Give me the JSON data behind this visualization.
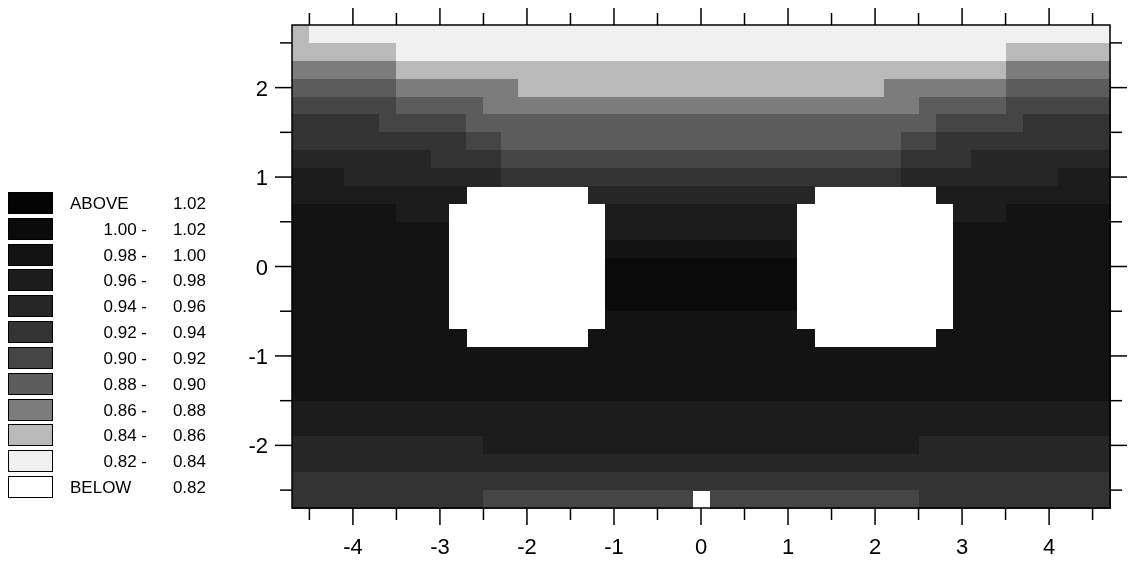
{
  "chart_data": {
    "type": "heatmap",
    "xlim": [
      -4.7,
      4.7
    ],
    "ylim": [
      -2.7,
      2.7
    ],
    "xticks": [
      {
        "value": -4.5,
        "label": null
      },
      -4,
      {
        "value": -3.5,
        "label": null
      },
      -3,
      {
        "value": -2.5,
        "label": null
      },
      -2,
      {
        "value": -1.5,
        "label": null
      },
      -1,
      {
        "value": -0.5,
        "label": null
      },
      0,
      {
        "value": 0.5,
        "label": null
      },
      1,
      {
        "value": 1.5,
        "label": null
      },
      2,
      {
        "value": 2.5,
        "label": null
      },
      3,
      {
        "value": 3.5,
        "label": null
      },
      4,
      {
        "value": 4.5,
        "label": null
      }
    ],
    "yticks": [
      {
        "value": -2.5,
        "label": null
      },
      -2,
      {
        "value": -1.5,
        "label": null
      },
      -1,
      {
        "value": -0.5,
        "label": null
      },
      0,
      {
        "value": 0.5,
        "label": null
      },
      1,
      {
        "value": 1.5,
        "label": null
      },
      2,
      {
        "value": 2.5,
        "label": null
      }
    ],
    "cticks": [
      {
        "value": 0.82,
        "label": "0.82 -"
      },
      {
        "value": 0.84,
        "label": "0.84 -"
      },
      {
        "value": 0.86,
        "label": "0.86 -"
      },
      {
        "value": 0.88,
        "label": "0.88 -"
      },
      {
        "value": 0.9,
        "label": "0.90 -"
      },
      {
        "value": 0.92,
        "label": "0.92 -"
      },
      {
        "value": 0.94,
        "label": "0.94 -"
      },
      {
        "value": 0.96,
        "label": "0.96 -"
      },
      {
        "value": 0.98,
        "label": "0.98 -"
      },
      {
        "value": 1.0,
        "label": "1.00 -"
      }
    ],
    "colors": [
      "#ffffff",
      "#f0f0f0",
      "#b9b9b9",
      "#7c7c7c",
      "#5c5c5c",
      "#454545",
      "#333333",
      "#262626",
      "#1c1c1c",
      "#131313",
      "#0b0b0b",
      "#040404"
    ],
    "annotations": [
      "ABOVE",
      "BELOW",
      "1.02",
      "1.02",
      "1.00",
      "0.98",
      "0.96",
      "0.94",
      "0.92",
      "0.90",
      "0.88",
      "0.86",
      "0.84",
      "0.82"
    ],
    "cells": [
      [
        0.84,
        0.82,
        0.82,
        0.82,
        0.82,
        0.82,
        0.82,
        0.82,
        0.82,
        0.82,
        0.82,
        0.82,
        0.82,
        0.82,
        0.82,
        0.82,
        0.82,
        0.82,
        0.82,
        0.82,
        0.82,
        0.82,
        0.82,
        0.82,
        0.82,
        0.82,
        0.82,
        0.82,
        0.82,
        0.82,
        0.82,
        0.82,
        0.82,
        0.82,
        0.82,
        0.82,
        0.82,
        0.82,
        0.82,
        0.82,
        0.82,
        0.82,
        0.82,
        0.82,
        0.82,
        0.82,
        0.82
      ],
      [
        0.84,
        0.84,
        0.84,
        0.84,
        0.84,
        0.84,
        0.82,
        0.82,
        0.82,
        0.82,
        0.82,
        0.82,
        0.82,
        0.82,
        0.82,
        0.82,
        0.82,
        0.82,
        0.82,
        0.82,
        0.82,
        0.82,
        0.82,
        0.82,
        0.82,
        0.82,
        0.82,
        0.82,
        0.82,
        0.82,
        0.82,
        0.82,
        0.82,
        0.82,
        0.82,
        0.82,
        0.82,
        0.82,
        0.82,
        0.82,
        0.82,
        0.84,
        0.84,
        0.84,
        0.84,
        0.84,
        0.84
      ],
      [
        0.86,
        0.86,
        0.86,
        0.86,
        0.86,
        0.86,
        0.84,
        0.84,
        0.84,
        0.84,
        0.84,
        0.84,
        0.84,
        0.84,
        0.84,
        0.84,
        0.84,
        0.84,
        0.84,
        0.84,
        0.84,
        0.84,
        0.84,
        0.84,
        0.84,
        0.84,
        0.84,
        0.84,
        0.84,
        0.84,
        0.84,
        0.84,
        0.84,
        0.84,
        0.84,
        0.84,
        0.84,
        0.84,
        0.84,
        0.84,
        0.84,
        0.86,
        0.86,
        0.86,
        0.86,
        0.86,
        0.86
      ],
      [
        0.88,
        0.88,
        0.88,
        0.88,
        0.88,
        0.88,
        0.86,
        0.86,
        0.86,
        0.86,
        0.86,
        0.86,
        0.86,
        0.84,
        0.84,
        0.84,
        0.84,
        0.84,
        0.84,
        0.84,
        0.84,
        0.84,
        0.84,
        0.84,
        0.84,
        0.84,
        0.84,
        0.84,
        0.84,
        0.84,
        0.84,
        0.84,
        0.84,
        0.84,
        0.86,
        0.86,
        0.86,
        0.86,
        0.86,
        0.86,
        0.86,
        0.88,
        0.88,
        0.88,
        0.88,
        0.88,
        0.88
      ],
      [
        0.9,
        0.9,
        0.9,
        0.9,
        0.9,
        0.9,
        0.88,
        0.88,
        0.88,
        0.88,
        0.88,
        0.86,
        0.86,
        0.86,
        0.86,
        0.86,
        0.86,
        0.86,
        0.86,
        0.86,
        0.86,
        0.86,
        0.86,
        0.86,
        0.86,
        0.86,
        0.86,
        0.86,
        0.86,
        0.86,
        0.86,
        0.86,
        0.86,
        0.86,
        0.86,
        0.86,
        0.88,
        0.88,
        0.88,
        0.88,
        0.88,
        0.9,
        0.9,
        0.9,
        0.9,
        0.9,
        0.9
      ],
      [
        0.92,
        0.92,
        0.92,
        0.92,
        0.92,
        0.9,
        0.9,
        0.9,
        0.9,
        0.9,
        0.88,
        0.88,
        0.88,
        0.88,
        0.88,
        0.88,
        0.88,
        0.88,
        0.88,
        0.88,
        0.88,
        0.88,
        0.88,
        0.88,
        0.88,
        0.88,
        0.88,
        0.88,
        0.88,
        0.88,
        0.88,
        0.88,
        0.88,
        0.88,
        0.88,
        0.88,
        0.88,
        0.9,
        0.9,
        0.9,
        0.9,
        0.9,
        0.92,
        0.92,
        0.92,
        0.92,
        0.92
      ],
      [
        0.92,
        0.92,
        0.92,
        0.92,
        0.92,
        0.92,
        0.92,
        0.92,
        0.92,
        0.92,
        0.9,
        0.9,
        0.88,
        0.88,
        0.88,
        0.88,
        0.88,
        0.88,
        0.88,
        0.88,
        0.88,
        0.88,
        0.88,
        0.88,
        0.88,
        0.88,
        0.88,
        0.88,
        0.88,
        0.88,
        0.88,
        0.88,
        0.88,
        0.88,
        0.88,
        0.9,
        0.9,
        0.92,
        0.92,
        0.92,
        0.92,
        0.92,
        0.92,
        0.92,
        0.92,
        0.92,
        0.92
      ],
      [
        0.94,
        0.94,
        0.94,
        0.94,
        0.94,
        0.94,
        0.94,
        0.94,
        0.92,
        0.92,
        0.92,
        0.92,
        0.9,
        0.9,
        0.9,
        0.9,
        0.9,
        0.9,
        0.9,
        0.9,
        0.9,
        0.9,
        0.9,
        0.9,
        0.9,
        0.9,
        0.9,
        0.9,
        0.9,
        0.9,
        0.9,
        0.9,
        0.9,
        0.9,
        0.9,
        0.92,
        0.92,
        0.92,
        0.92,
        0.94,
        0.94,
        0.94,
        0.94,
        0.94,
        0.94,
        0.94,
        0.94
      ],
      [
        0.96,
        0.96,
        0.96,
        0.94,
        0.94,
        0.94,
        0.94,
        0.94,
        0.94,
        0.94,
        0.94,
        0.94,
        0.92,
        0.92,
        0.92,
        0.92,
        0.92,
        0.92,
        0.92,
        0.92,
        0.92,
        0.92,
        0.92,
        0.92,
        0.92,
        0.92,
        0.92,
        0.92,
        0.92,
        0.92,
        0.92,
        0.92,
        0.92,
        0.92,
        0.92,
        0.94,
        0.94,
        0.94,
        0.94,
        0.94,
        0.94,
        0.94,
        0.94,
        0.94,
        0.96,
        0.96,
        0.96
      ],
      [
        0.96,
        0.96,
        0.96,
        0.96,
        0.96,
        0.96,
        0.96,
        0.96,
        0.96,
        0.96,
        null,
        null,
        null,
        null,
        null,
        null,
        null,
        0.94,
        0.94,
        0.94,
        0.94,
        0.94,
        0.94,
        0.94,
        0.94,
        0.94,
        0.94,
        0.94,
        0.94,
        0.94,
        null,
        null,
        null,
        null,
        null,
        null,
        null,
        0.96,
        0.96,
        0.96,
        0.96,
        0.96,
        0.96,
        0.96,
        0.96,
        0.96,
        0.96
      ],
      [
        0.98,
        0.98,
        0.98,
        0.98,
        0.98,
        0.98,
        0.96,
        0.96,
        0.96,
        null,
        null,
        null,
        null,
        null,
        null,
        null,
        null,
        null,
        0.96,
        0.96,
        0.96,
        0.96,
        0.96,
        0.96,
        0.96,
        0.96,
        0.96,
        0.96,
        0.96,
        null,
        null,
        null,
        null,
        null,
        null,
        null,
        null,
        null,
        0.96,
        0.96,
        0.96,
        0.98,
        0.98,
        0.98,
        0.98,
        0.98,
        0.98
      ],
      [
        0.98,
        0.98,
        0.98,
        0.98,
        0.98,
        0.98,
        0.98,
        0.98,
        0.98,
        null,
        null,
        null,
        null,
        null,
        null,
        null,
        null,
        null,
        0.96,
        0.96,
        0.96,
        0.96,
        0.96,
        0.96,
        0.96,
        0.96,
        0.96,
        0.96,
        0.96,
        null,
        null,
        null,
        null,
        null,
        null,
        null,
        null,
        null,
        0.98,
        0.98,
        0.98,
        0.98,
        0.98,
        0.98,
        0.98,
        0.98,
        0.98
      ],
      [
        0.98,
        0.98,
        0.98,
        0.98,
        0.98,
        0.98,
        0.98,
        0.98,
        0.98,
        null,
        null,
        null,
        null,
        null,
        null,
        null,
        null,
        null,
        0.98,
        0.98,
        0.98,
        0.98,
        0.98,
        0.98,
        0.98,
        0.98,
        0.98,
        0.98,
        0.98,
        null,
        null,
        null,
        null,
        null,
        null,
        null,
        null,
        null,
        0.98,
        0.98,
        0.98,
        0.98,
        0.98,
        0.98,
        0.98,
        0.98,
        0.98
      ],
      [
        0.98,
        0.98,
        0.98,
        0.98,
        0.98,
        0.98,
        0.98,
        0.98,
        0.98,
        null,
        null,
        null,
        null,
        null,
        null,
        null,
        null,
        null,
        1.0,
        1.0,
        1.0,
        1.0,
        1.0,
        1.0,
        1.0,
        1.0,
        1.0,
        1.0,
        1.0,
        null,
        null,
        null,
        null,
        null,
        null,
        null,
        null,
        null,
        0.98,
        0.98,
        0.98,
        0.98,
        0.98,
        0.98,
        0.98,
        0.98,
        0.98
      ],
      [
        0.98,
        0.98,
        0.98,
        0.98,
        0.98,
        0.98,
        0.98,
        0.98,
        0.98,
        null,
        null,
        null,
        null,
        null,
        null,
        null,
        null,
        null,
        1.0,
        1.0,
        1.0,
        1.0,
        1.0,
        1.0,
        1.0,
        1.0,
        1.0,
        1.0,
        1.0,
        null,
        null,
        null,
        null,
        null,
        null,
        null,
        null,
        null,
        0.98,
        0.98,
        0.98,
        0.98,
        0.98,
        0.98,
        0.98,
        0.98,
        0.98
      ],
      [
        0.98,
        0.98,
        0.98,
        0.98,
        0.98,
        0.98,
        0.98,
        0.98,
        0.98,
        null,
        null,
        null,
        null,
        null,
        null,
        null,
        null,
        null,
        1.0,
        1.0,
        1.0,
        1.0,
        1.0,
        1.0,
        1.0,
        1.0,
        1.0,
        1.0,
        1.0,
        null,
        null,
        null,
        null,
        null,
        null,
        null,
        null,
        null,
        0.98,
        0.98,
        0.98,
        0.98,
        0.98,
        0.98,
        0.98,
        0.98,
        0.98
      ],
      [
        0.98,
        0.98,
        0.98,
        0.98,
        0.98,
        0.98,
        0.98,
        0.98,
        0.98,
        null,
        null,
        null,
        null,
        null,
        null,
        null,
        null,
        null,
        0.98,
        0.98,
        0.98,
        0.98,
        0.98,
        0.98,
        0.98,
        0.98,
        0.98,
        0.98,
        0.98,
        null,
        null,
        null,
        null,
        null,
        null,
        null,
        null,
        null,
        0.98,
        0.98,
        0.98,
        0.98,
        0.98,
        0.98,
        0.98,
        0.98,
        0.98
      ],
      [
        0.98,
        0.98,
        0.98,
        0.98,
        0.98,
        0.98,
        0.98,
        0.98,
        0.98,
        0.98,
        null,
        null,
        null,
        null,
        null,
        null,
        null,
        0.98,
        0.98,
        0.98,
        0.98,
        0.98,
        0.98,
        0.98,
        0.98,
        0.98,
        0.98,
        0.98,
        0.98,
        0.98,
        null,
        null,
        null,
        null,
        null,
        null,
        null,
        0.98,
        0.98,
        0.98,
        0.98,
        0.98,
        0.98,
        0.98,
        0.98,
        0.98,
        0.98
      ],
      [
        0.98,
        0.98,
        0.98,
        0.98,
        0.98,
        0.98,
        0.98,
        0.98,
        0.98,
        0.98,
        0.98,
        0.98,
        0.98,
        0.98,
        0.98,
        0.98,
        0.98,
        0.98,
        0.98,
        0.98,
        0.98,
        0.98,
        0.98,
        0.98,
        0.98,
        0.98,
        0.98,
        0.98,
        0.98,
        0.98,
        0.98,
        0.98,
        0.98,
        0.98,
        0.98,
        0.98,
        0.98,
        0.98,
        0.98,
        0.98,
        0.98,
        0.98,
        0.98,
        0.98,
        0.98,
        0.98,
        0.98
      ],
      [
        0.98,
        0.98,
        0.98,
        0.98,
        0.98,
        0.98,
        0.98,
        0.98,
        0.98,
        0.98,
        0.98,
        0.98,
        0.98,
        0.98,
        0.98,
        0.98,
        0.98,
        0.98,
        0.98,
        0.98,
        0.98,
        0.98,
        0.98,
        0.98,
        0.98,
        0.98,
        0.98,
        0.98,
        0.98,
        0.98,
        0.98,
        0.98,
        0.98,
        0.98,
        0.98,
        0.98,
        0.98,
        0.98,
        0.98,
        0.98,
        0.98,
        0.98,
        0.98,
        0.98,
        0.98,
        0.98,
        0.98
      ],
      [
        0.98,
        0.98,
        0.98,
        0.98,
        0.98,
        0.98,
        0.98,
        0.98,
        0.98,
        0.98,
        0.98,
        0.98,
        0.98,
        0.98,
        0.98,
        0.98,
        0.98,
        0.98,
        0.98,
        0.98,
        0.98,
        0.98,
        0.98,
        0.98,
        0.98,
        0.98,
        0.98,
        0.98,
        0.98,
        0.98,
        0.98,
        0.98,
        0.98,
        0.98,
        0.98,
        0.98,
        0.98,
        0.98,
        0.98,
        0.98,
        0.98,
        0.98,
        0.98,
        0.98,
        0.98,
        0.98,
        0.98
      ],
      [
        0.96,
        0.96,
        0.96,
        0.96,
        0.96,
        0.96,
        0.96,
        0.96,
        0.96,
        0.96,
        0.96,
        0.96,
        0.96,
        0.96,
        0.96,
        0.96,
        0.96,
        0.96,
        0.96,
        0.96,
        0.96,
        0.96,
        0.96,
        0.96,
        0.96,
        0.96,
        0.96,
        0.96,
        0.96,
        0.96,
        0.96,
        0.96,
        0.96,
        0.96,
        0.96,
        0.96,
        0.96,
        0.96,
        0.96,
        0.96,
        0.96,
        0.96,
        0.96,
        0.96,
        0.96,
        0.96,
        0.96
      ],
      [
        0.96,
        0.96,
        0.96,
        0.96,
        0.96,
        0.96,
        0.96,
        0.96,
        0.96,
        0.96,
        0.96,
        0.96,
        0.96,
        0.96,
        0.96,
        0.96,
        0.96,
        0.96,
        0.96,
        0.96,
        0.96,
        0.96,
        0.96,
        0.96,
        0.96,
        0.96,
        0.96,
        0.96,
        0.96,
        0.96,
        0.96,
        0.96,
        0.96,
        0.96,
        0.96,
        0.96,
        0.96,
        0.96,
        0.96,
        0.96,
        0.96,
        0.96,
        0.96,
        0.96,
        0.96,
        0.96,
        0.96
      ],
      [
        0.94,
        0.94,
        0.94,
        0.94,
        0.94,
        0.94,
        0.94,
        0.94,
        0.94,
        0.94,
        0.94,
        0.96,
        0.96,
        0.96,
        0.96,
        0.96,
        0.96,
        0.96,
        0.96,
        0.96,
        0.96,
        0.96,
        0.96,
        0.96,
        0.96,
        0.96,
        0.96,
        0.96,
        0.96,
        0.96,
        0.96,
        0.96,
        0.96,
        0.96,
        0.96,
        0.96,
        0.94,
        0.94,
        0.94,
        0.94,
        0.94,
        0.94,
        0.94,
        0.94,
        0.94,
        0.94,
        0.94
      ],
      [
        0.94,
        0.94,
        0.94,
        0.94,
        0.94,
        0.94,
        0.94,
        0.94,
        0.94,
        0.94,
        0.94,
        0.94,
        0.94,
        0.94,
        0.94,
        0.94,
        0.94,
        0.94,
        0.94,
        0.94,
        0.94,
        0.94,
        0.94,
        0.94,
        0.94,
        0.94,
        0.94,
        0.94,
        0.94,
        0.94,
        0.94,
        0.94,
        0.94,
        0.94,
        0.94,
        0.94,
        0.94,
        0.94,
        0.94,
        0.94,
        0.94,
        0.94,
        0.94,
        0.94,
        0.94,
        0.94,
        0.94
      ],
      [
        0.92,
        0.92,
        0.92,
        0.92,
        0.92,
        0.92,
        0.92,
        0.92,
        0.92,
        0.92,
        0.92,
        0.92,
        0.92,
        0.92,
        0.92,
        0.92,
        0.92,
        0.92,
        0.92,
        0.92,
        0.92,
        0.92,
        0.92,
        0.92,
        0.92,
        0.92,
        0.92,
        0.92,
        0.92,
        0.92,
        0.92,
        0.92,
        0.92,
        0.92,
        0.92,
        0.92,
        0.92,
        0.92,
        0.92,
        0.92,
        0.92,
        0.92,
        0.92,
        0.92,
        0.92,
        0.92,
        0.92
      ],
      [
        0.92,
        0.92,
        0.92,
        0.92,
        0.92,
        0.92,
        0.92,
        0.92,
        0.92,
        0.92,
        0.92,
        0.9,
        0.9,
        0.9,
        0.9,
        0.9,
        0.9,
        0.9,
        0.9,
        0.9,
        0.9,
        0.9,
        0.9,
        null,
        0.9,
        0.9,
        0.9,
        0.9,
        0.9,
        0.9,
        0.9,
        0.9,
        0.9,
        0.9,
        0.9,
        0.9,
        0.92,
        0.92,
        0.92,
        0.92,
        0.92,
        0.92,
        0.92,
        0.92,
        0.92,
        0.92,
        0.92
      ]
    ]
  }
}
